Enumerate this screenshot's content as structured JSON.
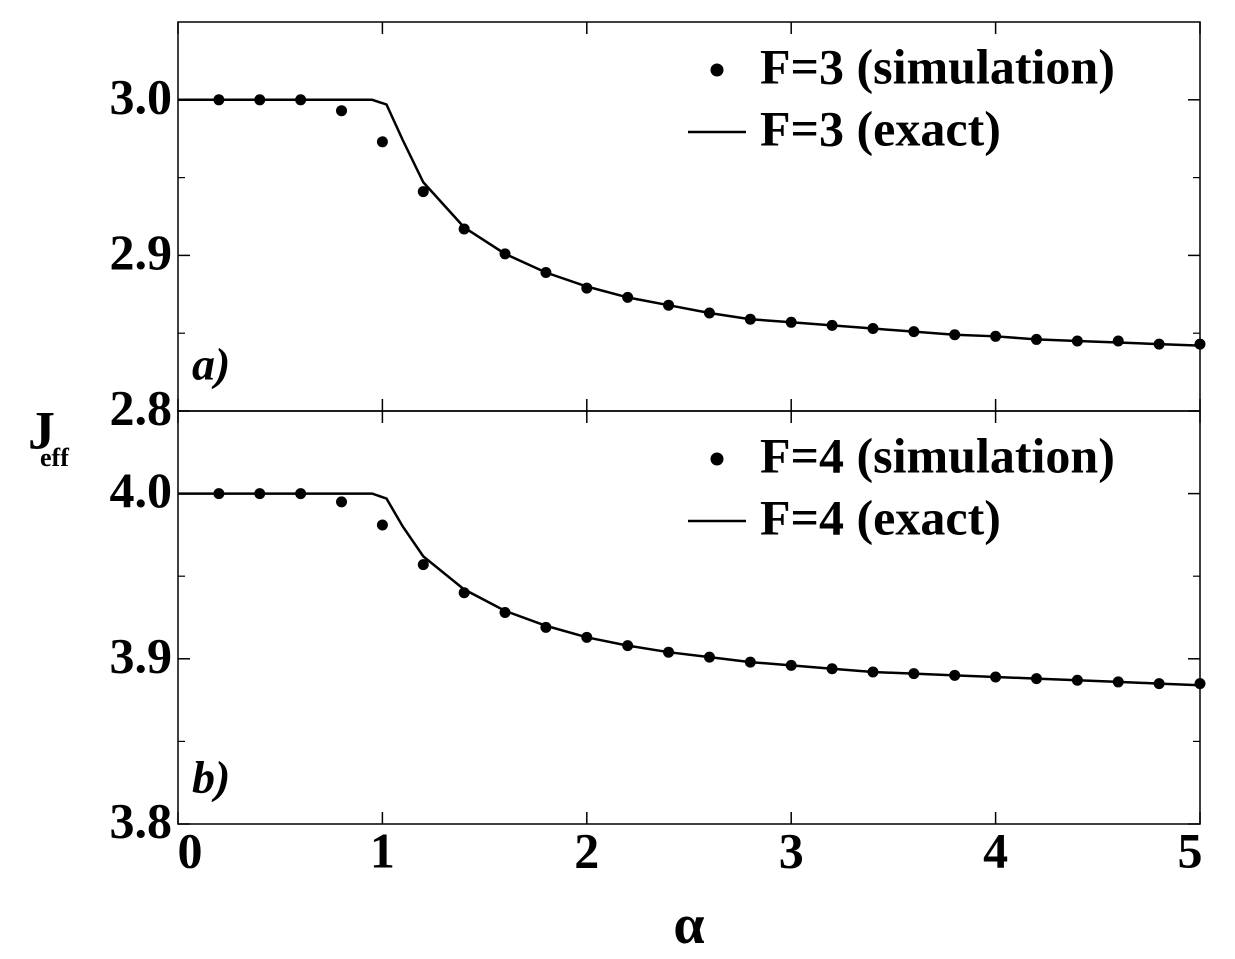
{
  "chart_data": [
    {
      "type": "line",
      "panel_label": "a)",
      "legend": "upper right",
      "show_xticklabels": false,
      "xlim": [
        0,
        5
      ],
      "xticks": [
        0,
        1,
        2,
        3,
        4,
        5
      ],
      "ylim": [
        2.8,
        3.05
      ],
      "yticks": [
        {
          "value": 2.8,
          "label": "2.8"
        },
        {
          "value": 2.9,
          "label": "2.9"
        },
        {
          "value": 3.0,
          "label": "3.0"
        }
      ],
      "yminorticks": [
        2.85,
        2.95
      ],
      "series": [
        {
          "name": "F=3 (simulation)",
          "type": "scatter",
          "color": "#000000",
          "x": [
            0.2,
            0.4,
            0.6,
            0.8,
            1.0,
            1.2,
            1.4,
            1.6,
            1.8,
            2.0,
            2.2,
            2.4,
            2.6,
            2.8,
            3.0,
            3.2,
            3.4,
            3.6,
            3.8,
            4.0,
            4.2,
            4.4,
            4.6,
            4.8,
            5.0
          ],
          "values": [
            3.0,
            3.0,
            3.0,
            2.993,
            2.973,
            2.941,
            2.917,
            2.901,
            2.889,
            2.879,
            2.873,
            2.868,
            2.863,
            2.859,
            2.857,
            2.855,
            2.853,
            2.851,
            2.849,
            2.848,
            2.846,
            2.845,
            2.845,
            2.843,
            2.843
          ]
        },
        {
          "name": "F=3 (exact)",
          "type": "line",
          "color": "#000000",
          "x": [
            0,
            0.95,
            1.02,
            1.1,
            1.2,
            1.4,
            1.6,
            1.8,
            2.0,
            2.2,
            2.4,
            2.6,
            2.8,
            3.0,
            3.2,
            3.4,
            3.6,
            3.8,
            4.0,
            4.2,
            4.4,
            4.6,
            4.8,
            5.0
          ],
          "values": [
            3.0,
            3.0,
            2.997,
            2.974,
            2.947,
            2.918,
            2.901,
            2.889,
            2.88,
            2.873,
            2.868,
            2.863,
            2.859,
            2.857,
            2.855,
            2.853,
            2.851,
            2.849,
            2.848,
            2.846,
            2.845,
            2.844,
            2.843,
            2.842
          ]
        }
      ]
    },
    {
      "type": "line",
      "panel_label": "b)",
      "legend": "upper right",
      "show_xticklabels": true,
      "xlabel": "α",
      "xlim": [
        0,
        5
      ],
      "xticks": [
        0,
        1,
        2,
        3,
        4,
        5
      ],
      "ylim": [
        3.8,
        4.05
      ],
      "yticks": [
        {
          "value": 3.8,
          "label": "3.8"
        },
        {
          "value": 3.9,
          "label": "3.9"
        },
        {
          "value": 4.0,
          "label": "4.0"
        }
      ],
      "yminorticks": [
        3.85,
        3.95
      ],
      "series": [
        {
          "name": "F=4 (simulation)",
          "type": "scatter",
          "color": "#000000",
          "x": [
            0.2,
            0.4,
            0.6,
            0.8,
            1.0,
            1.2,
            1.4,
            1.6,
            1.8,
            2.0,
            2.2,
            2.4,
            2.6,
            2.8,
            3.0,
            3.2,
            3.4,
            3.6,
            3.8,
            4.0,
            4.2,
            4.4,
            4.6,
            4.8,
            5.0
          ],
          "values": [
            4.0,
            4.0,
            4.0,
            3.995,
            3.981,
            3.957,
            3.94,
            3.928,
            3.919,
            3.913,
            3.908,
            3.904,
            3.901,
            3.898,
            3.896,
            3.894,
            3.892,
            3.891,
            3.89,
            3.889,
            3.888,
            3.887,
            3.886,
            3.885,
            3.885
          ]
        },
        {
          "name": "F=4 (exact)",
          "type": "line",
          "color": "#000000",
          "x": [
            0,
            0.95,
            1.02,
            1.1,
            1.2,
            1.4,
            1.6,
            1.8,
            2.0,
            2.2,
            2.4,
            2.6,
            2.8,
            3.0,
            3.2,
            3.4,
            3.6,
            3.8,
            4.0,
            4.2,
            4.4,
            4.6,
            4.8,
            5.0
          ],
          "values": [
            4.0,
            4.0,
            3.997,
            3.98,
            3.962,
            3.942,
            3.929,
            3.92,
            3.913,
            3.908,
            3.904,
            3.901,
            3.898,
            3.896,
            3.894,
            3.892,
            3.891,
            3.89,
            3.889,
            3.888,
            3.887,
            3.886,
            3.885,
            3.884
          ]
        }
      ]
    }
  ],
  "ylabel": {
    "text": "J",
    "sub": "eff"
  }
}
